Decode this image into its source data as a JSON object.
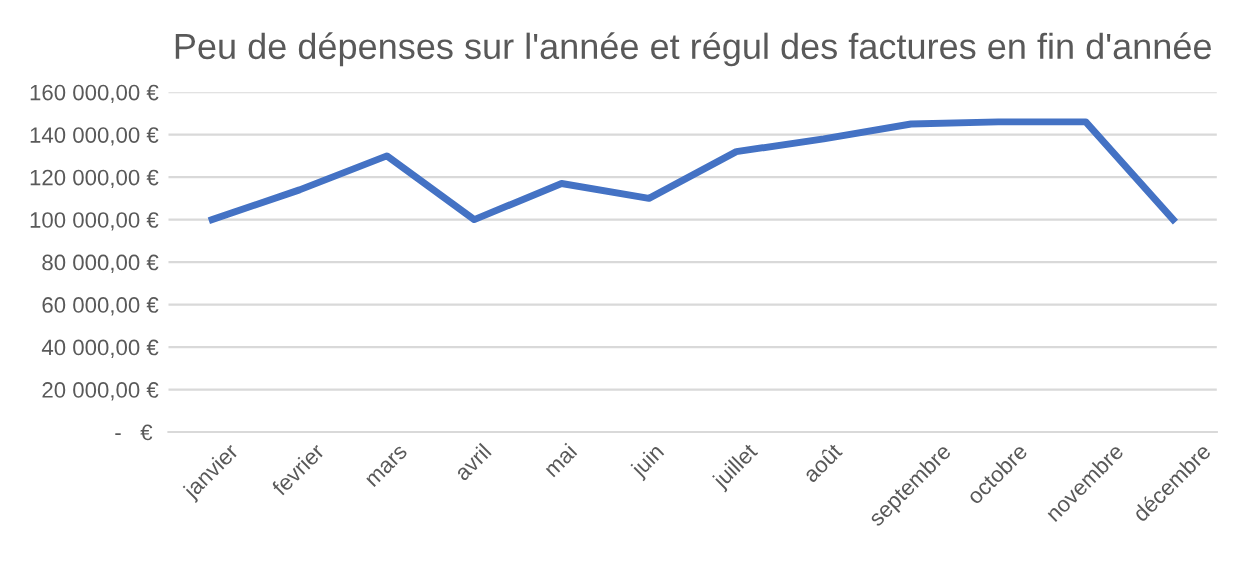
{
  "chart_data": {
    "type": "line",
    "title": "Peu de dépenses sur l'année et régul des factures en fin d'année",
    "categories": [
      "janvier",
      "fevrier",
      "mars",
      "avril",
      "mai",
      "juin",
      "juillet",
      "août",
      "septembre",
      "octobre",
      "novembre",
      "décembre"
    ],
    "series": [
      {
        "color": "#4472c4",
        "values": [
          100000,
          114000,
          130000,
          100000,
          117000,
          110000,
          132000,
          138000,
          145000,
          146000,
          146000,
          100000
        ]
      }
    ],
    "ylim": [
      0,
      160000
    ],
    "yticks": [
      {
        "value": 0,
        "label": " -   € "
      },
      {
        "value": 20000,
        "label": "20 000,00 €"
      },
      {
        "value": 40000,
        "label": "40 000,00 €"
      },
      {
        "value": 60000,
        "label": "60 000,00 €"
      },
      {
        "value": 80000,
        "label": "80 000,00 €"
      },
      {
        "value": 100000,
        "label": "100 000,00 €"
      },
      {
        "value": 120000,
        "label": "120 000,00 €"
      },
      {
        "value": 140000,
        "label": "140 000,00 €"
      },
      {
        "value": 160000,
        "label": "160 000,00 €"
      }
    ],
    "grid": "y",
    "marker": "none",
    "line_style": "solid"
  }
}
